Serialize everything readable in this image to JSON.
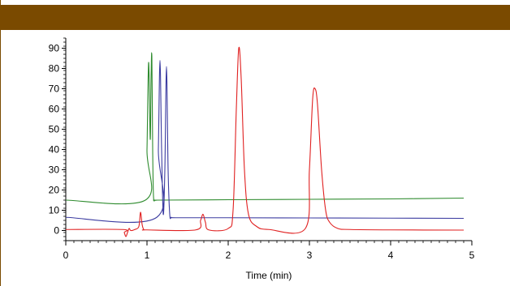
{
  "chart_data": {
    "type": "line",
    "title": "",
    "xlabel": "Time (min)",
    "ylabel": "",
    "xlim": [
      0,
      5
    ],
    "ylim": [
      -5,
      95
    ],
    "x_ticks": [
      0,
      1,
      2,
      3,
      4,
      5
    ],
    "y_ticks": [
      0,
      10,
      20,
      30,
      40,
      50,
      60,
      70,
      80,
      90
    ],
    "grid": false,
    "legend": "none",
    "series": [
      {
        "color": "#2e8b2e",
        "x": [
          0,
          0.98,
          1.0,
          1.02,
          1.04,
          1.05,
          1.06,
          1.07,
          1.08,
          1.1,
          1.12,
          1.15,
          2.0,
          3.0,
          4.0,
          4.9
        ],
        "y": [
          15,
          15,
          40,
          83,
          45,
          75,
          86,
          40,
          17,
          15,
          15,
          15,
          15.2,
          15.4,
          15.6,
          16
        ]
      },
      {
        "color": "#3b3ba0",
        "x": [
          0,
          1.12,
          1.14,
          1.16,
          1.18,
          1.2,
          1.22,
          1.24,
          1.26,
          1.28,
          1.3,
          1.35,
          2.0,
          3.0,
          4.0,
          4.9
        ],
        "y": [
          6.5,
          6.5,
          40,
          84,
          40,
          8,
          30,
          81,
          30,
          8,
          6.5,
          6.3,
          6.3,
          6.2,
          6.1,
          6
        ]
      },
      {
        "color": "#e02020",
        "x": [
          0,
          0.7,
          0.72,
          0.74,
          0.76,
          0.78,
          0.8,
          0.85,
          0.9,
          0.92,
          0.94,
          0.96,
          1.0,
          1.6,
          1.66,
          1.69,
          1.72,
          1.76,
          2.0,
          2.06,
          2.1,
          2.13,
          2.16,
          2.2,
          2.25,
          2.35,
          2.5,
          2.95,
          3.0,
          3.04,
          3.07,
          3.1,
          3.15,
          3.2,
          3.25,
          3.35,
          3.5,
          4.0,
          4.9
        ],
        "y": [
          0.5,
          0.5,
          -1,
          -3,
          -1,
          1,
          0,
          0.5,
          2,
          9,
          3,
          0.5,
          0.3,
          0.3,
          5,
          8,
          4,
          0.3,
          1,
          10,
          60,
          90,
          75,
          30,
          8,
          2,
          0.5,
          1,
          30,
          65,
          70,
          62,
          30,
          10,
          4,
          1,
          0.5,
          0.3,
          0.2
        ]
      }
    ]
  }
}
